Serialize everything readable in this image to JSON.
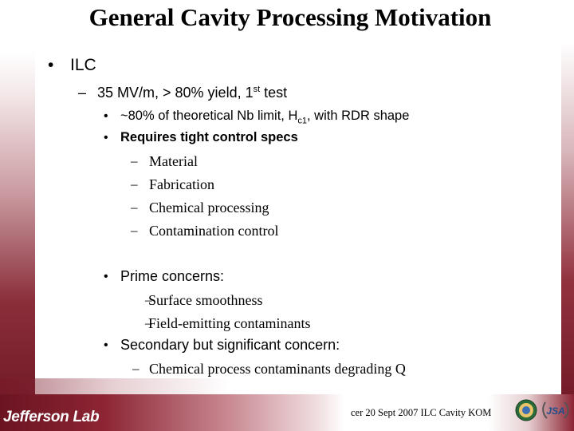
{
  "slide": {
    "title": "General Cavity Processing Motivation",
    "bullet_l1": "ILC",
    "item_l2": {
      "pre": "35 MV/m, > 80% yield, 1",
      "sup": "st",
      "post": " test"
    },
    "sub_bullet_1": {
      "pre": "~80% of theoretical Nb limit, H",
      "sub": "c1",
      "post": ", with RDR shape"
    },
    "sub_bullet_2": "Requires tight control specs",
    "control_specs": [
      "Material",
      "Fabrication",
      "Chemical processing",
      "Contamination control"
    ],
    "prime_concerns_label": "Prime concerns:",
    "prime_concerns": [
      "Surface smoothness",
      "Field-emitting contaminants"
    ],
    "secondary_concern_label": "Secondary but significant concern:",
    "secondary_concerns": [
      "Chemical process contaminants degrading Q"
    ]
  },
  "footer": {
    "logo": "Jefferson Lab",
    "text": "cer 20 Sept 2007 ILC Cavity KOM",
    "jsa_logo": "JSA"
  },
  "glyphs": {
    "bullet": "•",
    "dash": "–"
  },
  "colors": {
    "maroon": "#6b1422"
  }
}
